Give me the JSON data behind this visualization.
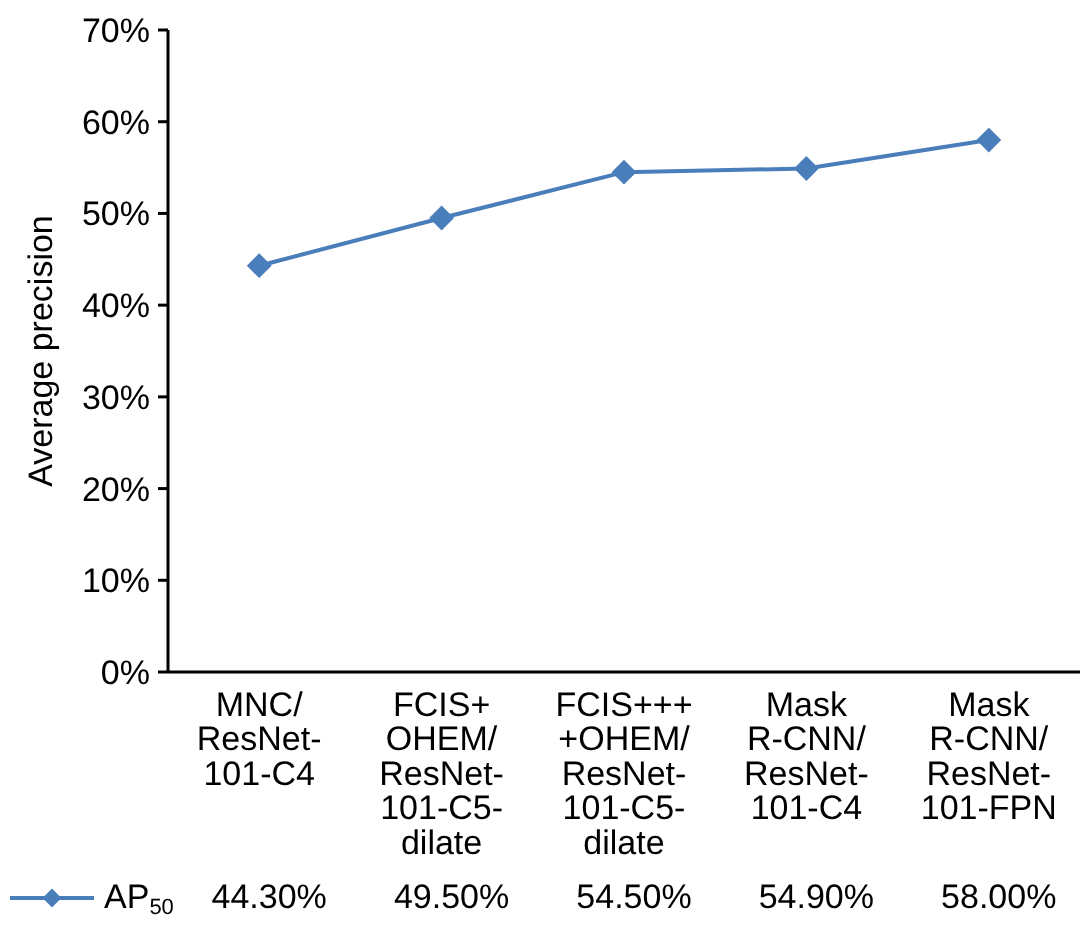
{
  "chart_data": {
    "type": "line",
    "ylabel": "Average precision",
    "categories": [
      "MNC/\nResNet-\n101-C4",
      "FCIS+\nOHEM/\nResNet-\n101-C5-\ndilate",
      "FCIS+++\n+OHEM/\nResNet-\n101-C5-\ndilate",
      "Mask\nR-CNN/\nResNet-\n101-C4",
      "Mask\nR-CNN/\nResNet-\n101-FPN"
    ],
    "series": [
      {
        "name": "AP$_{50}$",
        "color": "#4a7ebb",
        "values": [
          44.3,
          49.5,
          54.5,
          54.9,
          58.0
        ],
        "value_labels": [
          "44.30%",
          "49.50%",
          "54.50%",
          "54.90%",
          "58.00%"
        ]
      }
    ],
    "ylim": [
      0,
      70
    ],
    "yticks": [
      {
        "value": 0,
        "label": "0%"
      },
      {
        "value": 10,
        "label": "10%"
      },
      {
        "value": 20,
        "label": "20%"
      },
      {
        "value": 30,
        "label": "30%"
      },
      {
        "value": 40,
        "label": "40%"
      },
      {
        "value": 50,
        "label": "50%"
      },
      {
        "value": 60,
        "label": "60%"
      },
      {
        "value": 70,
        "label": "70%"
      }
    ],
    "grid": false,
    "legend": "bottom left",
    "marker": "diamond",
    "line_style": "solid"
  }
}
